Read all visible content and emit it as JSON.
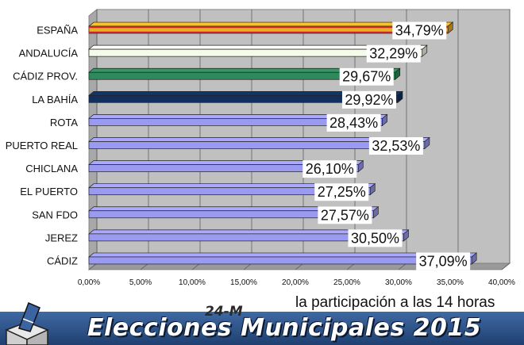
{
  "chart_data": {
    "type": "bar",
    "orientation": "horizontal",
    "categories": [
      "ESPAÑA",
      "ANDALUCÍA",
      "CÁDIZ PROV.",
      "LA BAHÍA",
      "ROTA",
      "PUERTO REAL",
      "CHICLANA",
      "EL PUERTO",
      "SAN FDO",
      "JEREZ",
      "CÁDIZ"
    ],
    "values": [
      34.79,
      32.29,
      29.67,
      29.92,
      28.43,
      32.53,
      26.1,
      27.25,
      27.57,
      30.5,
      37.09
    ],
    "data_labels": [
      "34,79%",
      "32,29%",
      "29,67%",
      "29,92%",
      "28,43%",
      "32,53%",
      "26,10%",
      "27,25%",
      "27,57%",
      "30,50%",
      "37,09%"
    ],
    "bar_colors": [
      "#e8b020",
      "#f4fbe8",
      "#2e8a5c",
      "#12305e",
      "#9a9af0",
      "#9a9af0",
      "#9a9af0",
      "#9a9af0",
      "#9a9af0",
      "#9a9af0",
      "#9a9af0"
    ],
    "xlim": [
      0,
      40
    ],
    "xticks": [
      0,
      5,
      10,
      15,
      20,
      25,
      30,
      35,
      40
    ],
    "xtick_labels": [
      "0,00%",
      "5,00%",
      "10,00%",
      "15,00%",
      "20,00%",
      "25,00%",
      "30,00%",
      "35,00%",
      "40,00%"
    ],
    "grid": true,
    "title": "",
    "xlabel": "",
    "ylabel": ""
  },
  "annotation": "la participación a las 14 horas",
  "banner": {
    "date": "24-M",
    "title": "Elecciones Municipales 2015"
  },
  "colors": {
    "plot_background": "#c0c0c0",
    "banner": "#2d548a"
  }
}
